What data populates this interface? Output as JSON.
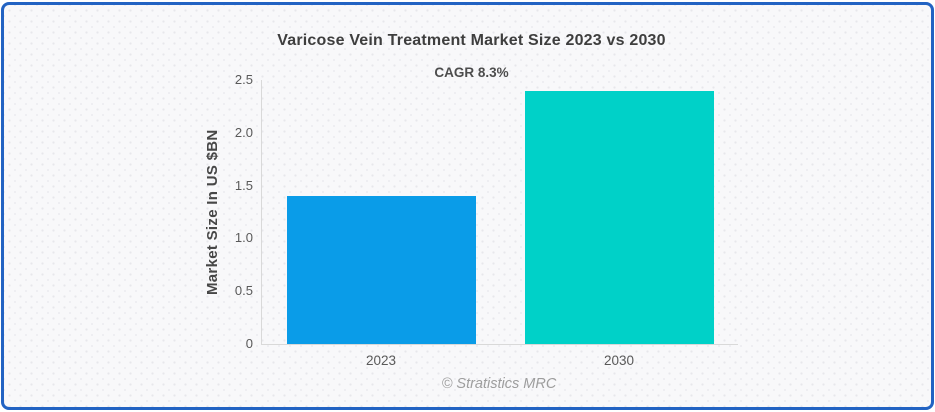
{
  "card": {
    "border_color": "#2263c3",
    "background_color": "#f8f8fa"
  },
  "chart_data": {
    "type": "bar",
    "title": "Varicose Vein Treatment Market Size 2023 vs 2030",
    "subtitle": "CAGR 8.3%",
    "ylabel": "Market Size In US $BN",
    "xlabel": "",
    "categories": [
      "2023",
      "2030"
    ],
    "values": [
      1.4,
      2.4
    ],
    "bar_colors": [
      "#0a9ce8",
      "#00d1c8"
    ],
    "ylim": [
      0,
      2.5
    ],
    "yticks": [
      {
        "value": 0,
        "label": "0"
      },
      {
        "value": 0.5,
        "label": "0.5"
      },
      {
        "value": 1.0,
        "label": "1.0"
      },
      {
        "value": 1.5,
        "label": "1.5"
      },
      {
        "value": 2.0,
        "label": "2.0"
      },
      {
        "value": 2.5,
        "label": "2.5"
      }
    ],
    "grid": false,
    "legend_position": "none",
    "axis_color": "#d9d9d9",
    "footer": "© Stratistics MRC"
  }
}
